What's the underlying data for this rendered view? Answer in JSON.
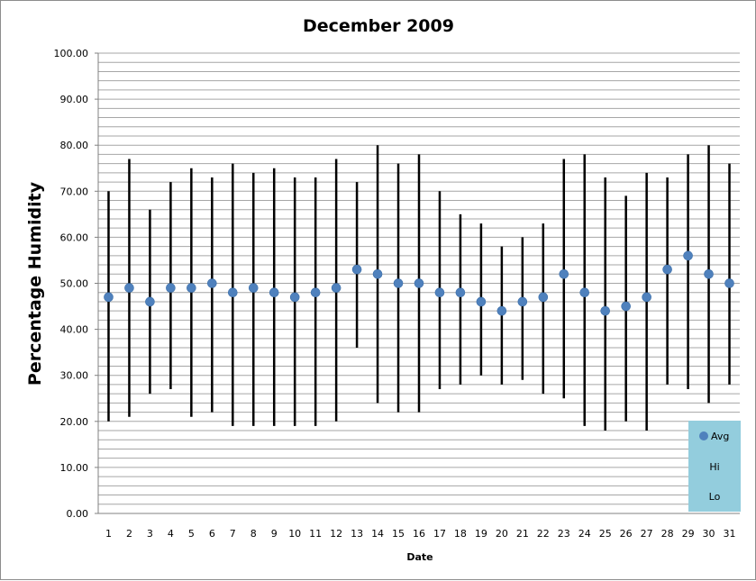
{
  "chart_data": {
    "type": "scatter",
    "title": "December 2009",
    "xlabel": "Date",
    "ylabel": "Percentage Humidity",
    "categories": [
      "1",
      "2",
      "3",
      "4",
      "5",
      "6",
      "7",
      "8",
      "9",
      "10",
      "11",
      "12",
      "13",
      "14",
      "15",
      "16",
      "17",
      "18",
      "19",
      "20",
      "21",
      "22",
      "23",
      "24",
      "25",
      "26",
      "27",
      "28",
      "29",
      "30",
      "31"
    ],
    "yticks": [
      "0.00",
      "10.00",
      "20.00",
      "30.00",
      "40.00",
      "50.00",
      "60.00",
      "70.00",
      "80.00",
      "90.00",
      "100.00"
    ],
    "ylim": [
      0,
      100
    ],
    "grid": true,
    "legend_position": "bottom-right",
    "series": [
      {
        "name": "Avg",
        "marker": "circle",
        "color": "#4f81bd",
        "values": [
          47,
          49,
          46,
          49,
          49,
          50,
          48,
          49,
          48,
          47,
          48,
          49,
          53,
          52,
          50,
          50,
          48,
          48,
          46,
          44,
          46,
          47,
          52,
          48,
          44,
          45,
          47,
          53,
          56,
          52,
          50
        ]
      },
      {
        "name": "Hi",
        "marker": "none",
        "values": [
          70,
          77,
          66,
          72,
          75,
          73,
          76,
          74,
          75,
          73,
          73,
          77,
          72,
          80,
          76,
          78,
          70,
          65,
          63,
          58,
          60,
          63,
          77,
          78,
          73,
          69,
          74,
          73,
          78,
          80,
          76
        ]
      },
      {
        "name": "Lo",
        "marker": "none",
        "values": [
          20,
          21,
          26,
          27,
          21,
          22,
          19,
          19,
          19,
          19,
          19,
          20,
          36,
          24,
          22,
          22,
          27,
          28,
          30,
          28,
          29,
          26,
          25,
          19,
          18,
          20,
          18,
          28,
          27,
          24,
          28
        ]
      }
    ],
    "colors": {
      "marker": "#4f81bd",
      "range_line": "#000000",
      "gridline": "#a6a6a6",
      "legend_bg": "#93cddd"
    }
  }
}
